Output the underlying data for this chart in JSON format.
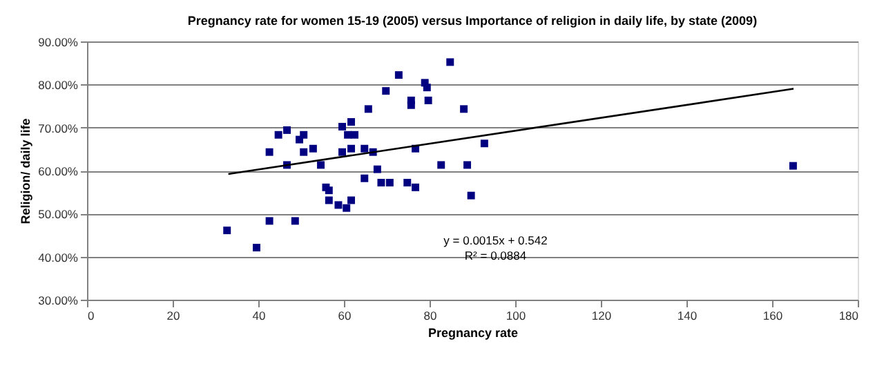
{
  "chart_data": {
    "type": "scatter",
    "title": "Pregnancy rate for women 15-19 (2005) versus Importance of religion in daily life, by state (2009)",
    "xlabel": "Pregnancy rate",
    "ylabel": "Religion/ daily life",
    "annotations": [
      "y = 0.0015x + 0.542",
      "R² = 0.0884"
    ],
    "xlim": [
      0,
      180
    ],
    "xticks": [
      0,
      20,
      40,
      60,
      80,
      100,
      120,
      140,
      160,
      180
    ],
    "ylim": [
      30,
      90
    ],
    "yticks": [
      {
        "value": 30,
        "label": "30.00%"
      },
      {
        "value": 40,
        "label": "40.00%"
      },
      {
        "value": 50,
        "label": "50.00%"
      },
      {
        "value": 60,
        "label": "60.00%"
      },
      {
        "value": 70,
        "label": "70.00%"
      },
      {
        "value": 80,
        "label": "80.00%"
      },
      {
        "value": 90,
        "label": "90.00%"
      }
    ],
    "grid": "y",
    "series": [
      {
        "type": "scatter",
        "color": "#000080",
        "marker": "square",
        "x": [
          32.7,
          39.6,
          42.6,
          48.6,
          42.6,
          44.7,
          46.7,
          46.7,
          49.6,
          50.6,
          50.6,
          52.8,
          54.6,
          55.8,
          56.5,
          56.5,
          58.7,
          60.6,
          61.7,
          59.6,
          61.7,
          60.9,
          62.5,
          59.6,
          61.7,
          64.8,
          66.8,
          64.8,
          67.8,
          68.7,
          70.7,
          65.7,
          69.8,
          72.8,
          75.7,
          75.7,
          74.8,
          76.7,
          76.7,
          78.9,
          79.4,
          79.7,
          84.8,
          82.7,
          88.0,
          88.8,
          89.7,
          92.8,
          164.9
        ],
        "values": [
          46.1,
          42.1,
          48.3,
          48.3,
          64.3,
          68.3,
          69.4,
          61.3,
          67.2,
          68.3,
          64.3,
          65.1,
          61.3,
          56.1,
          55.4,
          53.1,
          52.0,
          51.3,
          53.1,
          70.2,
          71.3,
          68.3,
          68.3,
          64.3,
          65.1,
          65.1,
          64.3,
          58.2,
          60.3,
          57.2,
          57.2,
          74.3,
          78.5,
          82.2,
          76.3,
          75.2,
          57.2,
          56.1,
          65.1,
          80.4,
          79.3,
          76.3,
          85.2,
          61.3,
          74.3,
          61.3,
          54.2,
          66.3,
          61.1
        ]
      },
      {
        "type": "line",
        "color": "#000000",
        "line_style": "solid",
        "marker": "none",
        "x": [
          33,
          165
        ],
        "values": [
          59.2,
          79.0
        ]
      }
    ]
  }
}
